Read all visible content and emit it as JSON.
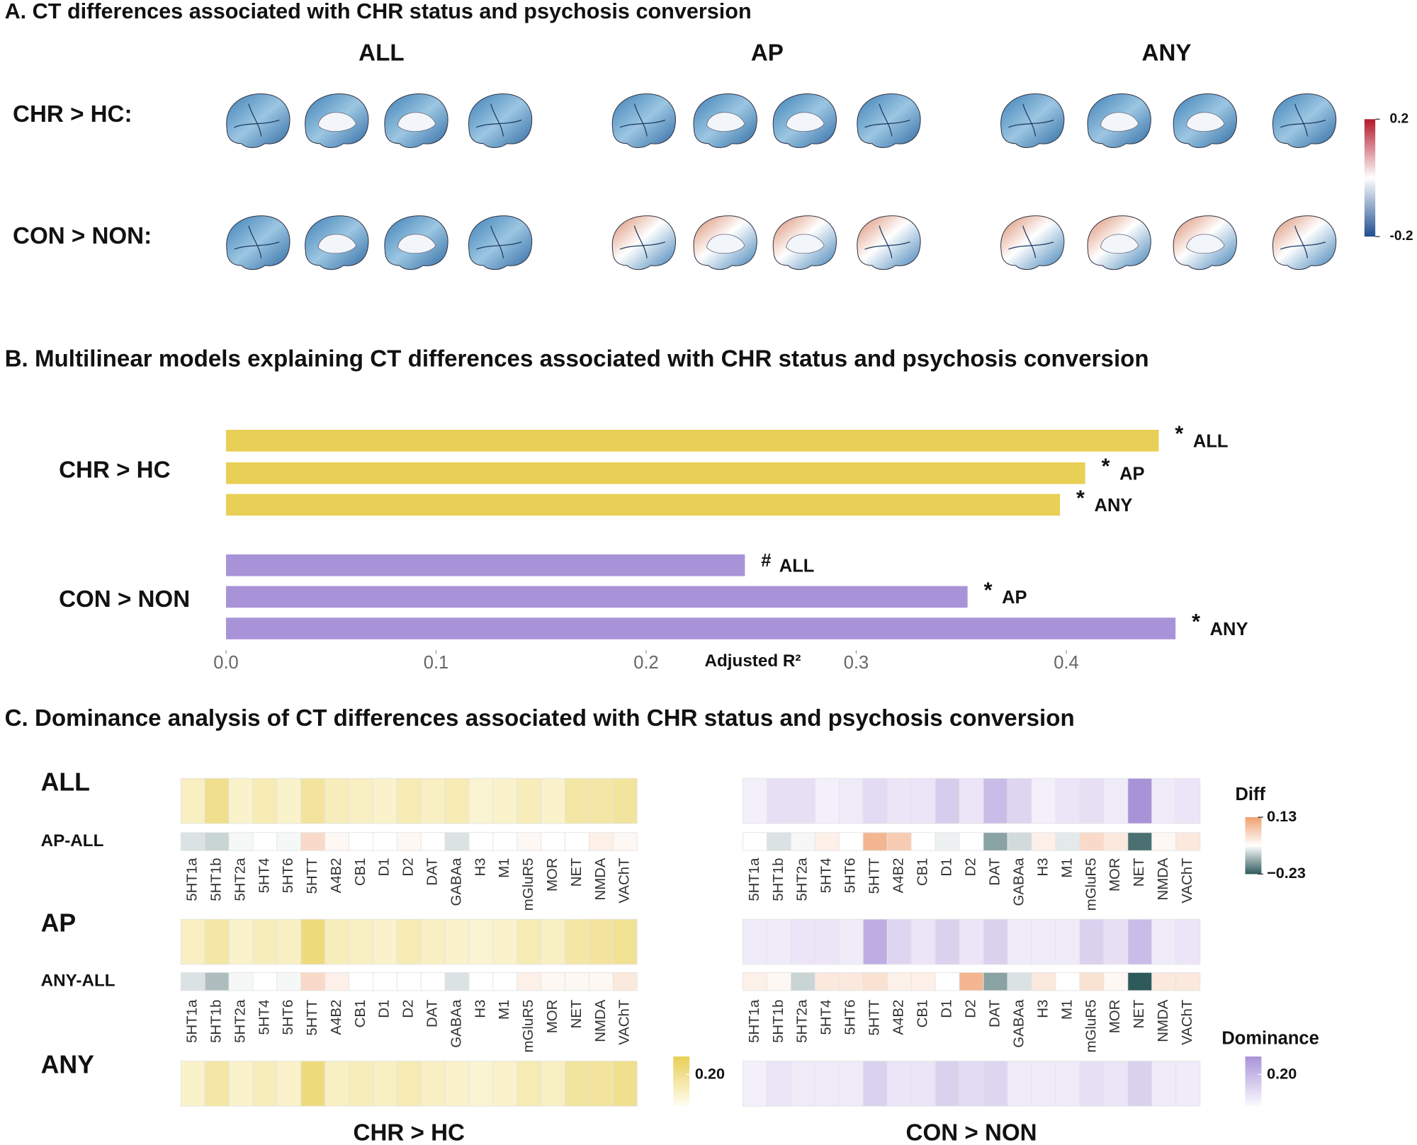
{
  "panel_a": {
    "title": "A. CT differences associated with CHR status and psychosis conversion",
    "columns": [
      "ALL",
      "AP",
      "ANY"
    ],
    "rows": [
      "CHR > HC:",
      "CON > NON:"
    ],
    "colorbar": {
      "range": [
        -0.2,
        0.2
      ],
      "ticks": [
        0.2,
        -0.2
      ],
      "colors": [
        "#1f4e8f",
        "#ffffff",
        "#b2182b"
      ]
    }
  },
  "panel_b": {
    "title": "B.  Multilinear models explaining CT differences associated with CHR status and psychosis conversion"
  },
  "panel_c": {
    "title": "C.  Dominance analysis of CT differences associated with CHR status and psychosis conversion",
    "rows": [
      "ALL",
      "AP-ALL",
      "AP",
      "ANY-ALL",
      "ANY"
    ]
  },
  "chart_data": [
    {
      "type": "bar",
      "orientation": "horizontal",
      "categories": [
        "ALL",
        "AP",
        "ANY"
      ],
      "series": [
        {
          "name": "CHR > HC",
          "color": "#e8cf55",
          "values": [
            0.444,
            0.409,
            0.397
          ],
          "markers": [
            "*",
            "*",
            "*"
          ]
        },
        {
          "name": "CON > NON",
          "color": "#a993d8",
          "values": [
            0.247,
            0.353,
            0.452
          ],
          "markers": [
            "#",
            "*",
            "*"
          ]
        }
      ],
      "xlabel": "Adjusted R²",
      "xlim": [
        0,
        0.46
      ],
      "xticks": [
        {
          "value": 0,
          "label": "0.0"
        },
        0.1,
        0.2,
        0.3,
        0.4
      ]
    },
    {
      "type": "heatmap",
      "title": "CHR > HC",
      "columns": [
        "5HT1a",
        "5HT1b",
        "5HT2a",
        "5HT4",
        "5HT6",
        "5HTT",
        "A4B2",
        "CB1",
        "D1",
        "D2",
        "DAT",
        "GABAa",
        "H3",
        "M1",
        "mGluR5",
        "MOR",
        "NET",
        "NMDA",
        "VAChT"
      ],
      "values": [
        [
          0.06,
          0.13,
          0.05,
          0.08,
          0.05,
          0.11,
          0.07,
          0.06,
          0.05,
          0.08,
          0.06,
          0.08,
          0.04,
          0.05,
          0.07,
          0.05,
          0.1,
          0.1,
          0.11
        ],
        [
          -0.04,
          -0.06,
          -0.01,
          0,
          -0.01,
          0.05,
          0.01,
          0,
          0,
          0.01,
          0,
          -0.04,
          0,
          0,
          0.01,
          0,
          0,
          0.02,
          0.01
        ],
        [
          0.06,
          0.1,
          0.05,
          0.07,
          0.06,
          0.15,
          0.07,
          0.06,
          0.05,
          0.08,
          0.06,
          0.05,
          0.04,
          0.05,
          0.08,
          0.06,
          0.1,
          0.11,
          0.12
        ],
        [
          -0.04,
          -0.09,
          -0.01,
          0,
          -0.01,
          0.05,
          0.02,
          0,
          0,
          0,
          0,
          -0.04,
          0,
          0,
          0.02,
          0.01,
          0.01,
          0.01,
          0.03
        ],
        [
          0.05,
          0.1,
          0.05,
          0.07,
          0.05,
          0.15,
          0.06,
          0.07,
          0.06,
          0.08,
          0.06,
          0.05,
          0.04,
          0.05,
          0.08,
          0.06,
          0.11,
          0.11,
          0.13
        ]
      ],
      "colorbar": {
        "zlim": [
          0,
          0.2
        ],
        "colors": [
          "#fffdf2",
          "#e8cf55"
        ],
        "ticks": [
          {
            "value": 0.2,
            "label": "0.20"
          }
        ]
      }
    },
    {
      "type": "heatmap",
      "title": "CON > NON",
      "columns": [
        "5HT1a",
        "5HT1b",
        "5HT2a",
        "5HT4",
        "5HT6",
        "5HTT",
        "A4B2",
        "CB1",
        "D1",
        "D2",
        "DAT",
        "GABAa",
        "H3",
        "M1",
        "mGluR5",
        "MOR",
        "NET",
        "NMDA",
        "VAChT"
      ],
      "values": [
        [
          0.02,
          0.05,
          0.05,
          0.02,
          0.03,
          0.06,
          0.04,
          0.04,
          0.09,
          0.04,
          0.12,
          0.07,
          0.02,
          0.04,
          0.05,
          0.03,
          0.2,
          0.03,
          0.04
        ],
        [
          0,
          -0.04,
          -0.01,
          0.02,
          0,
          0.1,
          0.07,
          0,
          -0.02,
          0,
          -0.13,
          -0.05,
          0.02,
          -0.03,
          0.05,
          0.03,
          -0.2,
          0.01,
          0.03
        ],
        [
          0.03,
          0.03,
          0.04,
          0.04,
          0.03,
          0.15,
          0.07,
          0.04,
          0.08,
          0.04,
          0.08,
          0.03,
          0.03,
          0.03,
          0.08,
          0.05,
          0.12,
          0.03,
          0.04
        ],
        [
          0.02,
          0.01,
          -0.06,
          0.03,
          0.03,
          0.04,
          0.02,
          0.02,
          0,
          0.1,
          -0.13,
          -0.04,
          0.03,
          0,
          0.04,
          0.01,
          -0.23,
          0.03,
          0.03
        ],
        [
          0.02,
          0.04,
          0.03,
          0.03,
          0.03,
          0.08,
          0.04,
          0.04,
          0.08,
          0.06,
          0.07,
          0.03,
          0.03,
          0.03,
          0.05,
          0.04,
          0.08,
          0.03,
          0.03
        ]
      ],
      "colorbar": {
        "title": "Dominance",
        "zlim": [
          0,
          0.2
        ],
        "colors": [
          "#fbfaff",
          "#a993d8"
        ],
        "ticks": [
          {
            "value": 0.2,
            "label": "0.20"
          }
        ]
      },
      "diff_colorbar": {
        "title": "Diff",
        "zlim": [
          -0.23,
          0.13
        ],
        "colors": [
          "#2f5a5c",
          "#ffffff",
          "#f0a070"
        ],
        "ticks": [
          0.13,
          {
            "value": -0.23,
            "label": "−0.23"
          }
        ]
      }
    }
  ]
}
